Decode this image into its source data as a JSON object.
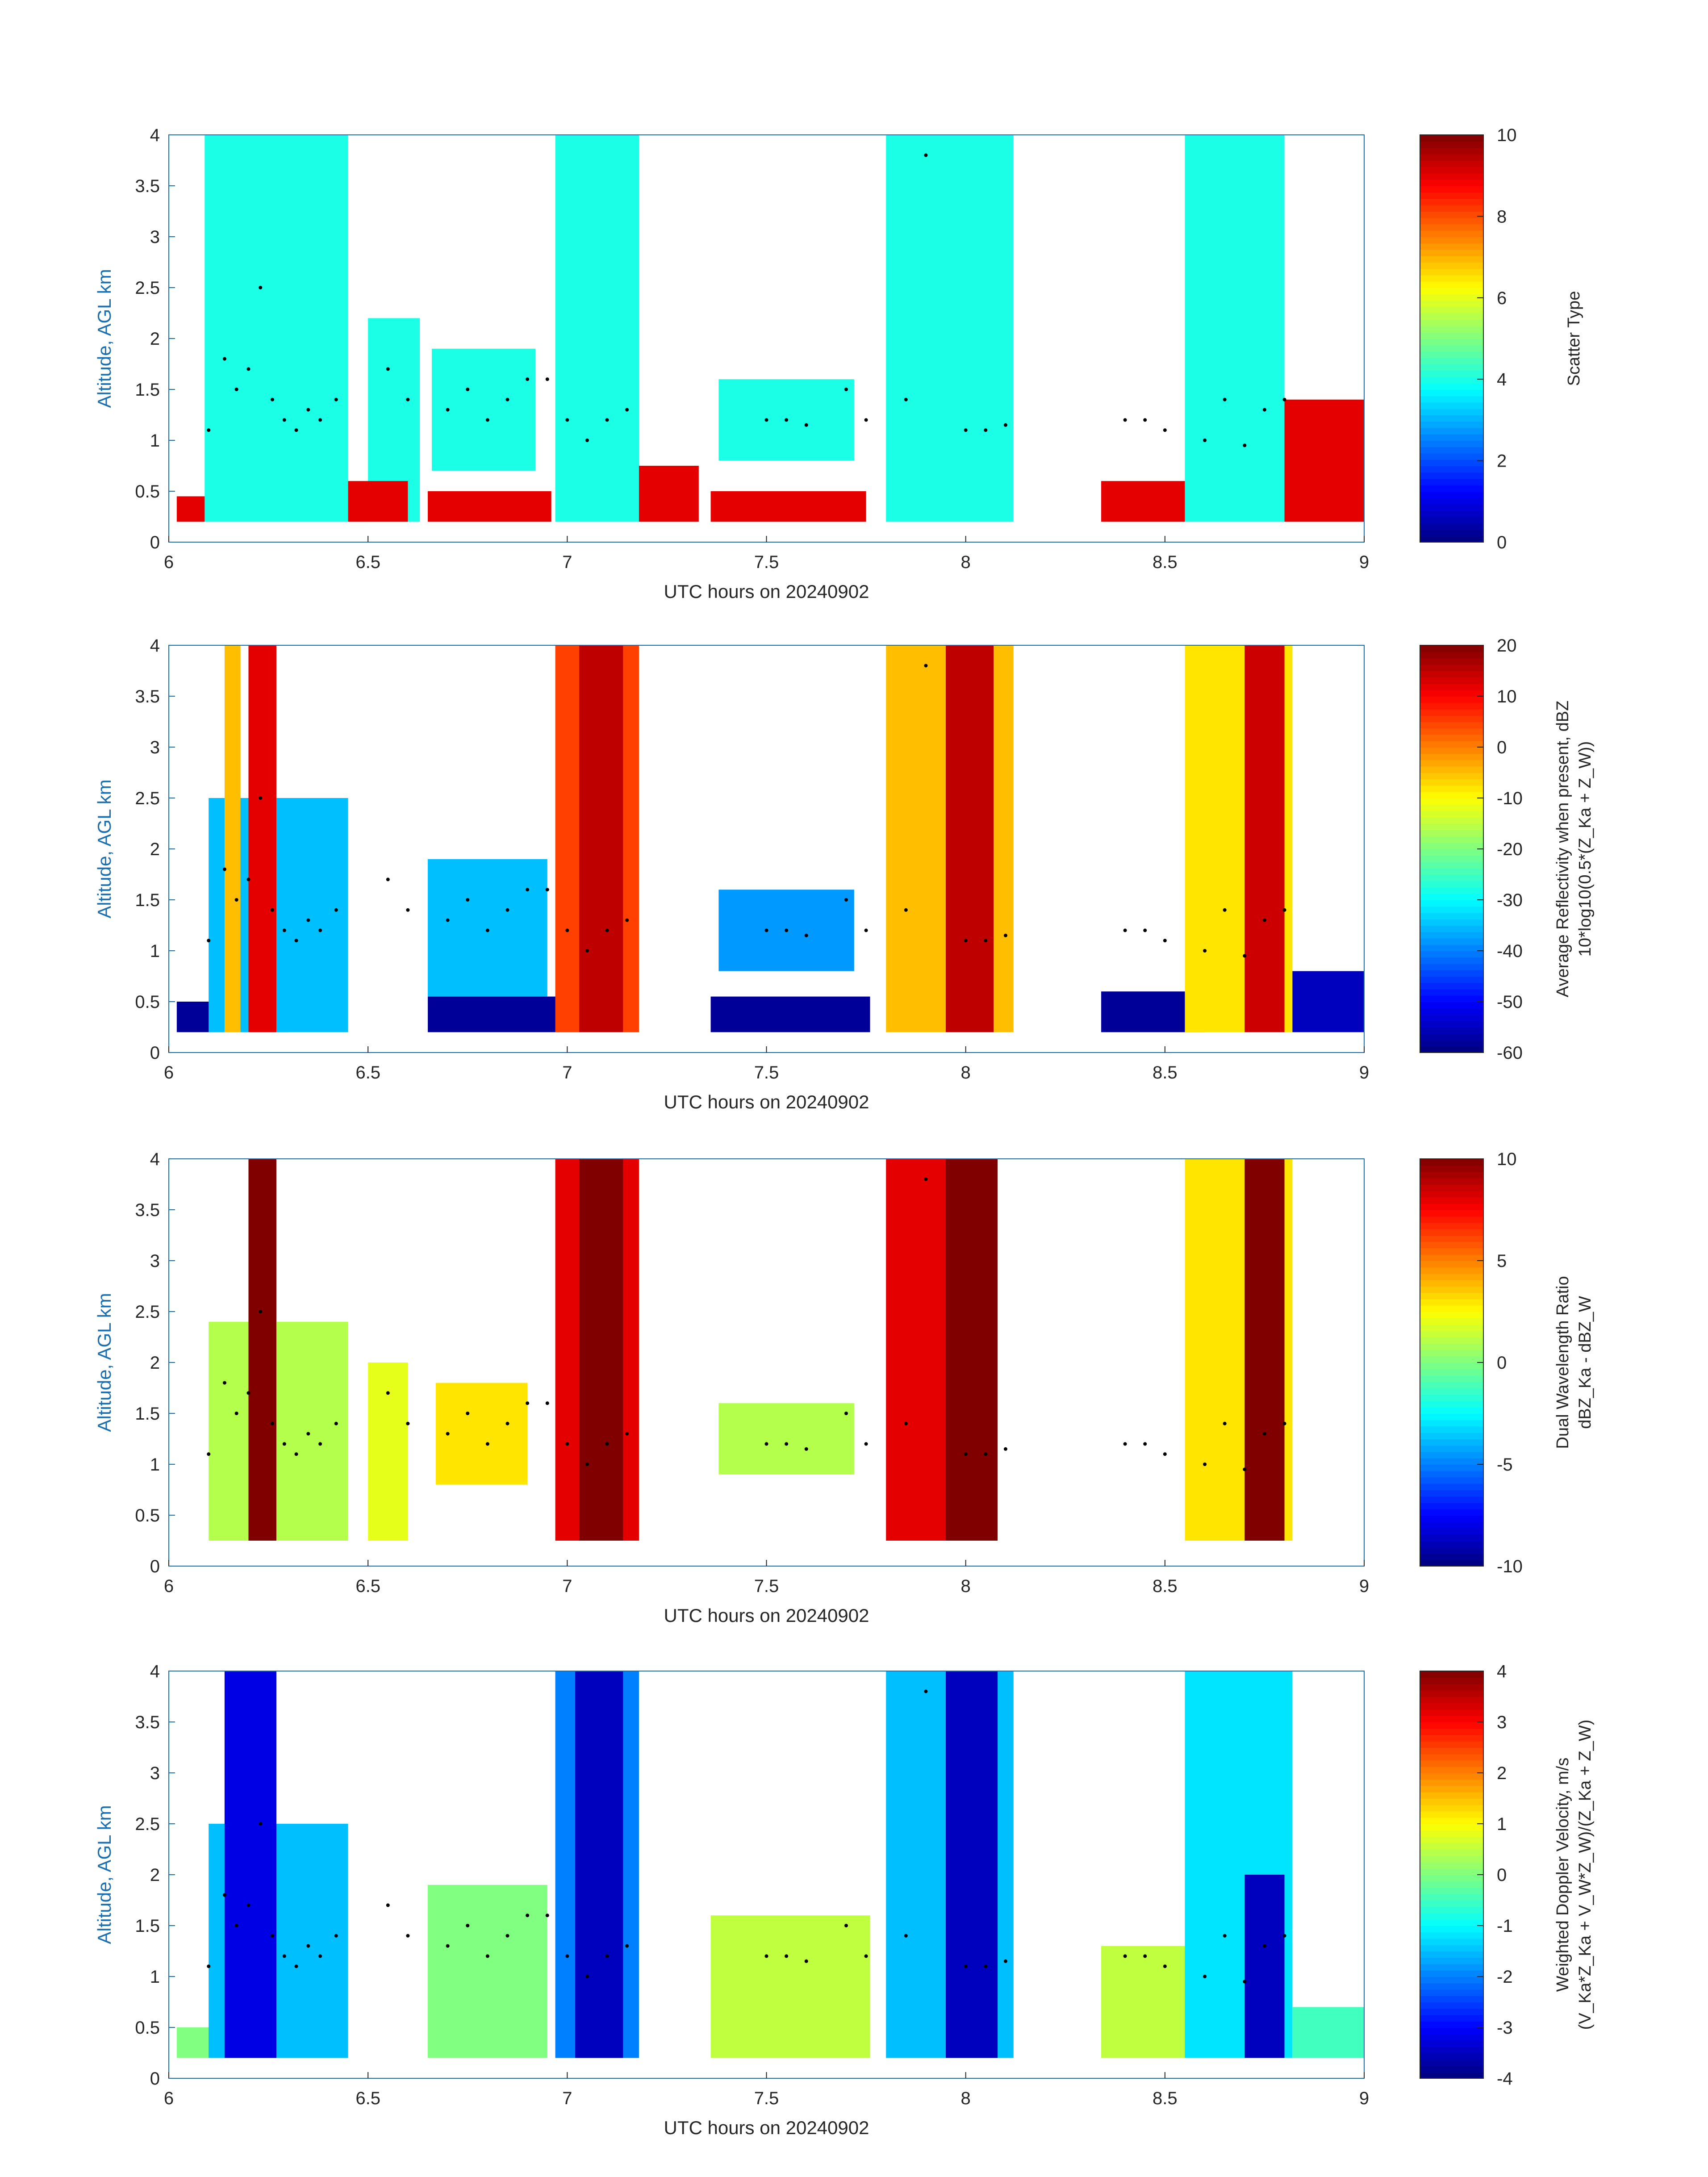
{
  "figure": {
    "x_axis": {
      "label": "UTC hours on 20240902",
      "range": [
        6,
        9
      ],
      "ticks": [
        "6",
        "6.5",
        "7",
        "7.5",
        "8",
        "8.5",
        "9"
      ]
    },
    "y_axis": {
      "label": "Altitude, AGL km",
      "range": [
        0,
        4
      ],
      "ticks": [
        "0",
        "0.5",
        "1",
        "1.5",
        "2",
        "2.5",
        "3",
        "3.5",
        "4"
      ]
    }
  },
  "chart_data": [
    {
      "type": "heatmap",
      "field": "scatter_type",
      "colorbar": {
        "lines": [
          "Scatter Type"
        ],
        "range": [
          0,
          10
        ],
        "ticks": [
          "0",
          "2",
          "4",
          "6",
          "8",
          "10"
        ]
      },
      "regions": [
        {
          "x": [
            6.09,
            6.45
          ],
          "y": [
            0.2,
            4.0
          ],
          "value": 4
        },
        {
          "x": [
            6.5,
            6.63
          ],
          "y": [
            0.2,
            2.2
          ],
          "value": 4
        },
        {
          "x": [
            6.66,
            6.92
          ],
          "y": [
            0.7,
            1.9
          ],
          "value": 4
        },
        {
          "x": [
            6.97,
            7.18
          ],
          "y": [
            0.2,
            4.0
          ],
          "value": 4
        },
        {
          "x": [
            7.38,
            7.72
          ],
          "y": [
            0.8,
            1.6
          ],
          "value": 4
        },
        {
          "x": [
            7.8,
            8.12
          ],
          "y": [
            0.2,
            4.0
          ],
          "value": 4
        },
        {
          "x": [
            8.55,
            8.8
          ],
          "y": [
            0.2,
            4.0
          ],
          "value": 4
        },
        {
          "x": [
            6.02,
            6.09
          ],
          "y": [
            0.2,
            0.45
          ],
          "value": 9
        },
        {
          "x": [
            6.45,
            6.6
          ],
          "y": [
            0.2,
            0.6
          ],
          "value": 9
        },
        {
          "x": [
            6.65,
            6.96
          ],
          "y": [
            0.2,
            0.5
          ],
          "value": 9
        },
        {
          "x": [
            7.18,
            7.33
          ],
          "y": [
            0.2,
            0.75
          ],
          "value": 9
        },
        {
          "x": [
            7.36,
            7.75
          ],
          "y": [
            0.2,
            0.5
          ],
          "value": 9
        },
        {
          "x": [
            8.34,
            8.55
          ],
          "y": [
            0.2,
            0.6
          ],
          "value": 9
        },
        {
          "x": [
            8.8,
            9.0
          ],
          "y": [
            0.2,
            1.4
          ],
          "value": 9
        }
      ]
    },
    {
      "type": "heatmap",
      "field": "average_reflectivity",
      "colorbar": {
        "lines": [
          "Average Reflectivity when present, dBZ",
          "10*log10(0.5*(Z_Ka + Z_W))"
        ],
        "range": [
          -60,
          20
        ],
        "ticks": [
          "-60",
          "-50",
          "-40",
          "-30",
          "-20",
          "-10",
          "0",
          "10",
          "20"
        ]
      },
      "regions": [
        {
          "x": [
            6.02,
            6.3
          ],
          "y": [
            0.2,
            0.5
          ],
          "value": -58
        },
        {
          "x": [
            6.1,
            6.45
          ],
          "y": [
            0.2,
            2.5
          ],
          "value": -35
        },
        {
          "x": [
            6.14,
            6.18
          ],
          "y": [
            0.2,
            4.0
          ],
          "value": -5
        },
        {
          "x": [
            6.2,
            6.27
          ],
          "y": [
            0.2,
            4.0
          ],
          "value": 12
        },
        {
          "x": [
            6.65,
            6.98
          ],
          "y": [
            0.2,
            0.55
          ],
          "value": -58
        },
        {
          "x": [
            6.65,
            6.95
          ],
          "y": [
            0.55,
            1.9
          ],
          "value": -35
        },
        {
          "x": [
            6.97,
            7.18
          ],
          "y": [
            0.2,
            4.0
          ],
          "value": 5
        },
        {
          "x": [
            7.03,
            7.14
          ],
          "y": [
            0.2,
            4.0
          ],
          "value": 15
        },
        {
          "x": [
            7.36,
            7.76
          ],
          "y": [
            0.2,
            0.55
          ],
          "value": -58
        },
        {
          "x": [
            7.38,
            7.72
          ],
          "y": [
            0.8,
            1.6
          ],
          "value": -38
        },
        {
          "x": [
            7.8,
            8.12
          ],
          "y": [
            0.2,
            4.0
          ],
          "value": -5
        },
        {
          "x": [
            7.95,
            8.07
          ],
          "y": [
            0.2,
            4.0
          ],
          "value": 15
        },
        {
          "x": [
            8.34,
            8.6
          ],
          "y": [
            0.2,
            0.6
          ],
          "value": -58
        },
        {
          "x": [
            8.55,
            8.82
          ],
          "y": [
            0.2,
            4.0
          ],
          "value": -8
        },
        {
          "x": [
            8.7,
            8.8
          ],
          "y": [
            0.2,
            4.0
          ],
          "value": 14
        },
        {
          "x": [
            8.82,
            9.0
          ],
          "y": [
            0.2,
            0.8
          ],
          "value": -55
        }
      ]
    },
    {
      "type": "heatmap",
      "field": "dual_wavelength_ratio",
      "colorbar": {
        "lines": [
          "Dual Wavelength Ratio",
          "dBZ_Ka - dBZ_W"
        ],
        "range": [
          -10,
          10
        ],
        "ticks": [
          "-10",
          "-5",
          "0",
          "5",
          "10"
        ]
      },
      "regions": [
        {
          "x": [
            6.1,
            6.45
          ],
          "y": [
            0.25,
            2.4
          ],
          "value": 1
        },
        {
          "x": [
            6.2,
            6.27
          ],
          "y": [
            0.25,
            4.0
          ],
          "value": 10
        },
        {
          "x": [
            6.5,
            6.6
          ],
          "y": [
            0.25,
            2.0
          ],
          "value": 2
        },
        {
          "x": [
            6.67,
            6.9
          ],
          "y": [
            0.8,
            1.8
          ],
          "value": 3
        },
        {
          "x": [
            6.97,
            7.18
          ],
          "y": [
            0.25,
            4.0
          ],
          "value": 8
        },
        {
          "x": [
            7.03,
            7.14
          ],
          "y": [
            0.25,
            4.0
          ],
          "value": 10
        },
        {
          "x": [
            7.38,
            7.72
          ],
          "y": [
            0.9,
            1.6
          ],
          "value": 1
        },
        {
          "x": [
            7.8,
            8.08
          ],
          "y": [
            0.25,
            4.0
          ],
          "value": 8
        },
        {
          "x": [
            7.95,
            8.08
          ],
          "y": [
            0.25,
            4.0
          ],
          "value": 10
        },
        {
          "x": [
            8.55,
            8.82
          ],
          "y": [
            0.25,
            4.0
          ],
          "value": 3
        },
        {
          "x": [
            8.7,
            8.8
          ],
          "y": [
            0.25,
            4.0
          ],
          "value": 10
        }
      ]
    },
    {
      "type": "heatmap",
      "field": "weighted_doppler_velocity",
      "colorbar": {
        "lines": [
          "Weighted Doppler Velocity, m/s",
          "(V_Ka*Z_Ka + V_W*Z_W)/(Z_Ka + Z_W)"
        ],
        "range": [
          -4,
          4
        ],
        "ticks": [
          "-4",
          "-3",
          "-2",
          "-1",
          "0",
          "1",
          "2",
          "3",
          "4"
        ]
      },
      "regions": [
        {
          "x": [
            6.02,
            6.45
          ],
          "y": [
            0.2,
            0.5
          ],
          "value": 0
        },
        {
          "x": [
            6.1,
            6.45
          ],
          "y": [
            0.2,
            2.5
          ],
          "value": -1.5
        },
        {
          "x": [
            6.14,
            6.27
          ],
          "y": [
            0.2,
            4.0
          ],
          "value": -3.2
        },
        {
          "x": [
            6.65,
            6.95
          ],
          "y": [
            0.2,
            1.9
          ],
          "value": 0
        },
        {
          "x": [
            6.97,
            7.18
          ],
          "y": [
            0.2,
            4.0
          ],
          "value": -2
        },
        {
          "x": [
            7.02,
            7.14
          ],
          "y": [
            0.2,
            4.0
          ],
          "value": -3.5
        },
        {
          "x": [
            7.36,
            7.76
          ],
          "y": [
            0.2,
            1.6
          ],
          "value": 0.5
        },
        {
          "x": [
            7.8,
            8.12
          ],
          "y": [
            0.2,
            4.0
          ],
          "value": -1.5
        },
        {
          "x": [
            7.95,
            8.08
          ],
          "y": [
            0.2,
            4.0
          ],
          "value": -3.5
        },
        {
          "x": [
            8.34,
            8.6
          ],
          "y": [
            0.2,
            1.3
          ],
          "value": 0.5
        },
        {
          "x": [
            8.55,
            8.82
          ],
          "y": [
            0.2,
            4.0
          ],
          "value": -1.2
        },
        {
          "x": [
            8.7,
            8.8
          ],
          "y": [
            0.2,
            2.0
          ],
          "value": -3.5
        },
        {
          "x": [
            8.82,
            9.0
          ],
          "y": [
            0.2,
            0.7
          ],
          "value": -0.5
        }
      ]
    }
  ],
  "overlay_points": {
    "x": [
      6.1,
      6.14,
      6.17,
      6.2,
      6.23,
      6.26,
      6.29,
      6.32,
      6.35,
      6.38,
      6.42,
      6.55,
      6.6,
      6.7,
      6.75,
      6.8,
      6.85,
      6.9,
      6.95,
      7.0,
      7.05,
      7.1,
      7.15,
      7.5,
      7.55,
      7.6,
      7.7,
      7.75,
      7.85,
      7.9,
      8.0,
      8.05,
      8.1,
      8.4,
      8.45,
      8.5,
      8.6,
      8.65,
      8.7,
      8.75,
      8.8
    ],
    "y": [
      1.1,
      1.8,
      1.5,
      1.7,
      2.5,
      1.4,
      1.2,
      1.1,
      1.3,
      1.2,
      1.4,
      1.7,
      1.4,
      1.3,
      1.5,
      1.2,
      1.4,
      1.6,
      1.6,
      1.2,
      1.0,
      1.2,
      1.3,
      1.2,
      1.2,
      1.15,
      1.5,
      1.2,
      1.4,
      3.8,
      1.1,
      1.1,
      1.15,
      1.2,
      1.2,
      1.1,
      1.0,
      1.4,
      0.95,
      1.3,
      1.4
    ]
  }
}
